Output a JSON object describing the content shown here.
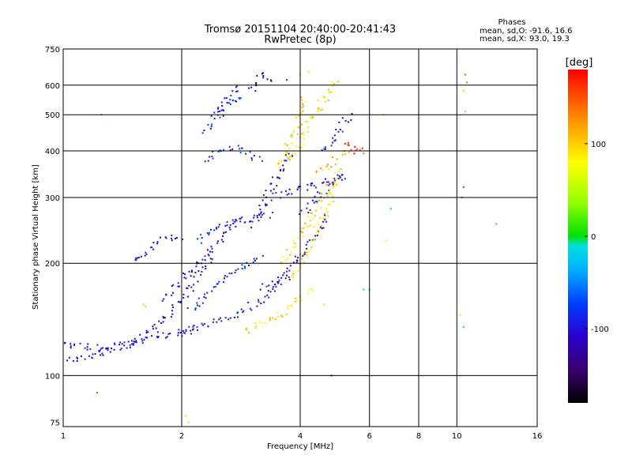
{
  "chart_data": {
    "type": "scatter",
    "title": "Tromsø 20151104 20:40:00-20:41:43",
    "subtitle": "RwPretec (8p)",
    "xlabel": "Frequency [MHz]",
    "ylabel": "Stationary phase Virtual Height [km]",
    "x_scale": "log",
    "y_scale": "log",
    "xlim": [
      1,
      16
    ],
    "ylim": [
      73,
      750
    ],
    "x_ticks": [
      1,
      2,
      4,
      6,
      8,
      10,
      16
    ],
    "x_tick_labels": [
      "1",
      "2",
      "4",
      "6",
      "8",
      "10",
      "16"
    ],
    "y_ticks": [
      75,
      100,
      200,
      300,
      400,
      500,
      600,
      750
    ],
    "y_tick_labels": [
      "75",
      "100",
      "200",
      "300",
      "400",
      "500",
      "600",
      "750"
    ],
    "x_grid": [
      2,
      4,
      6,
      8,
      10
    ],
    "y_grid": [
      100,
      200,
      300,
      400,
      500,
      600
    ],
    "legend_title": "Phases",
    "stats": [
      {
        "label": "mean, sd,O:",
        "value": "-91.6, 16.6"
      },
      {
        "label": "mean, sd,X:",
        "value": " 93.0, 19.3"
      }
    ],
    "colorbar": {
      "unit_label": "[deg]",
      "range": [
        -180,
        180
      ],
      "tick_values": [
        100,
        0,
        -100
      ],
      "tick_labels": [
        "100",
        "0",
        "-100"
      ]
    },
    "series": [
      {
        "mode": "O",
        "mean_phase": -91.6,
        "traces": [
          {
            "f": [
              1.0,
              1.2,
              1.4,
              1.6,
              1.8,
              2.0,
              2.2,
              2.4
            ],
            "h": [
              110,
              113,
              118,
              128,
              142,
              160,
              185,
              215
            ],
            "phase": -110
          },
          {
            "f": [
              1.0,
              1.25,
              1.5,
              1.75,
              2.0,
              2.2
            ],
            "h": [
              122,
              118,
              122,
              128,
              130,
              134
            ],
            "phase": -100
          },
          {
            "f": [
              1.5,
              1.65,
              1.8,
              1.9,
              2.0
            ],
            "h": [
              200,
              215,
              232,
              235,
              230
            ],
            "phase": -100
          },
          {
            "f": [
              1.8,
              2.0,
              2.2,
              2.4,
              2.6,
              2.8
            ],
            "h": [
              160,
              180,
              200,
              220,
              240,
              270
            ],
            "phase": -105
          },
          {
            "f": [
              2.0,
              2.3,
              2.6,
              2.9,
              3.2,
              3.5,
              3.8
            ],
            "h": [
              130,
              136,
              142,
              150,
              160,
              175,
              190
            ],
            "phase": -95
          },
          {
            "f": [
              2.1,
              2.4,
              2.7,
              3.0,
              3.2
            ],
            "h": [
              150,
              170,
              190,
              200,
              210
            ],
            "phase": -95
          },
          {
            "f": [
              2.2,
              2.5,
              2.8,
              3.1,
              3.4
            ],
            "h": [
              230,
              250,
              260,
              265,
              270
            ],
            "phase": -90
          },
          {
            "f": [
              2.3,
              2.5,
              2.6,
              2.7,
              2.8
            ],
            "h": [
              450,
              520,
              560,
              580,
              600
            ],
            "phase": -95
          },
          {
            "f": [
              2.3,
              2.5,
              2.7,
              2.9,
              3.0,
              3.2
            ],
            "h": [
              380,
              400,
              410,
              400,
              390,
              380
            ],
            "phase": -90
          },
          {
            "f": [
              2.5,
              2.7,
              2.9
            ],
            "h": [
              500,
              540,
              560
            ],
            "phase": -80
          },
          {
            "f": [
              3.0,
              3.2,
              3.4,
              3.6,
              3.8
            ],
            "h": [
              250,
              280,
              320,
              360,
              400
            ],
            "phase": -120
          },
          {
            "f": [
              3.0,
              3.1,
              3.2,
              3.3,
              3.4
            ],
            "h": [
              580,
              620,
              640,
              620,
              600
            ],
            "phase": -125
          },
          {
            "f": [
              3.2,
              3.5,
              3.8,
              4.1,
              4.4,
              4.7
            ],
            "h": [
              170,
              180,
              195,
              215,
              240,
              270
            ],
            "phase": -120
          },
          {
            "f": [
              3.4,
              3.8,
              4.2,
              4.6,
              5.0,
              5.3
            ],
            "h": [
              300,
              310,
              320,
              330,
              340,
              345
            ],
            "phase": -100
          },
          {
            "f": [
              4.0,
              4.3,
              4.6,
              4.9,
              5.2
            ],
            "h": [
              270,
              290,
              310,
              330,
              350
            ],
            "phase": -90
          },
          {
            "f": [
              4.6,
              4.8,
              5.0,
              5.2,
              5.4
            ],
            "h": [
              400,
              420,
              450,
              480,
              500
            ],
            "phase": -100
          }
        ]
      },
      {
        "mode": "X",
        "mean_phase": 93.0,
        "traces": [
          {
            "f": [
              2.9,
              3.1,
              3.3,
              3.5,
              3.7,
              3.9,
              4.1,
              4.3
            ],
            "h": [
              130,
              135,
              140,
              145,
              150,
              158,
              165,
              172
            ],
            "phase": 95
          },
          {
            "f": [
              3.8,
              4.0,
              4.2,
              4.4,
              4.6,
              4.8,
              4.9,
              5.0
            ],
            "h": [
              180,
              200,
              220,
              245,
              270,
              300,
              330,
              360
            ],
            "phase": 90
          },
          {
            "f": [
              3.6,
              3.8,
              4.0,
              4.2,
              4.4,
              4.6,
              4.8
            ],
            "h": [
              200,
              215,
              235,
              255,
              280,
              305,
              330
            ],
            "phase": 95
          },
          {
            "f": [
              3.5,
              3.7,
              3.9,
              4.0,
              4.1
            ],
            "h": [
              360,
              400,
              450,
              500,
              560
            ],
            "phase": 100
          },
          {
            "f": [
              3.8,
              4.0,
              4.2,
              4.4,
              4.6,
              4.8,
              5.0
            ],
            "h": [
              380,
              420,
              470,
              510,
              550,
              590,
              630
            ],
            "phase": 95
          },
          {
            "f": [
              4.4,
              4.6,
              4.8,
              5.0,
              5.2,
              5.4
            ],
            "h": [
              350,
              360,
              370,
              380,
              390,
              400
            ],
            "phase": 110
          },
          {
            "f": [
              5.2,
              5.35,
              5.5,
              5.65,
              5.8
            ],
            "h": [
              415,
              408,
              402,
              398,
              392
            ],
            "phase": 160
          }
        ]
      }
    ],
    "scattered_points": [
      {
        "f": 1.6,
        "h": 155,
        "phase": 40
      },
      {
        "f": 1.62,
        "h": 153,
        "phase": 40
      },
      {
        "f": 1.25,
        "h": 500,
        "phase": 140
      },
      {
        "f": 1.22,
        "h": 90,
        "phase": 150
      },
      {
        "f": 2.05,
        "h": 78,
        "phase": 95
      },
      {
        "f": 2.08,
        "h": 75,
        "phase": 95
      },
      {
        "f": 6.5,
        "h": 500,
        "phase": 100
      },
      {
        "f": 6.6,
        "h": 230,
        "phase": 85
      },
      {
        "f": 10.5,
        "h": 640,
        "phase": 150
      },
      {
        "f": 10.6,
        "h": 610,
        "phase": 140
      },
      {
        "f": 10.4,
        "h": 580,
        "phase": 100
      },
      {
        "f": 10.5,
        "h": 510,
        "phase": 110
      },
      {
        "f": 10.4,
        "h": 320,
        "phase": -60
      },
      {
        "f": 10.3,
        "h": 300,
        "phase": -40
      },
      {
        "f": 10.2,
        "h": 145,
        "phase": 90
      },
      {
        "f": 10.4,
        "h": 135,
        "phase": -20
      },
      {
        "f": 12.6,
        "h": 255,
        "phase": 140
      },
      {
        "f": 6.8,
        "h": 280,
        "phase": -20
      },
      {
        "f": 5.8,
        "h": 170,
        "phase": -30
      },
      {
        "f": 6.0,
        "h": 170,
        "phase": -20
      },
      {
        "f": 4.8,
        "h": 100,
        "phase": -90
      },
      {
        "f": 4.6,
        "h": 155,
        "phase": 95
      },
      {
        "f": 4.0,
        "h": 640,
        "phase": 100
      },
      {
        "f": 4.2,
        "h": 650,
        "phase": 95
      },
      {
        "f": 3.7,
        "h": 620,
        "phase": -70
      }
    ]
  }
}
